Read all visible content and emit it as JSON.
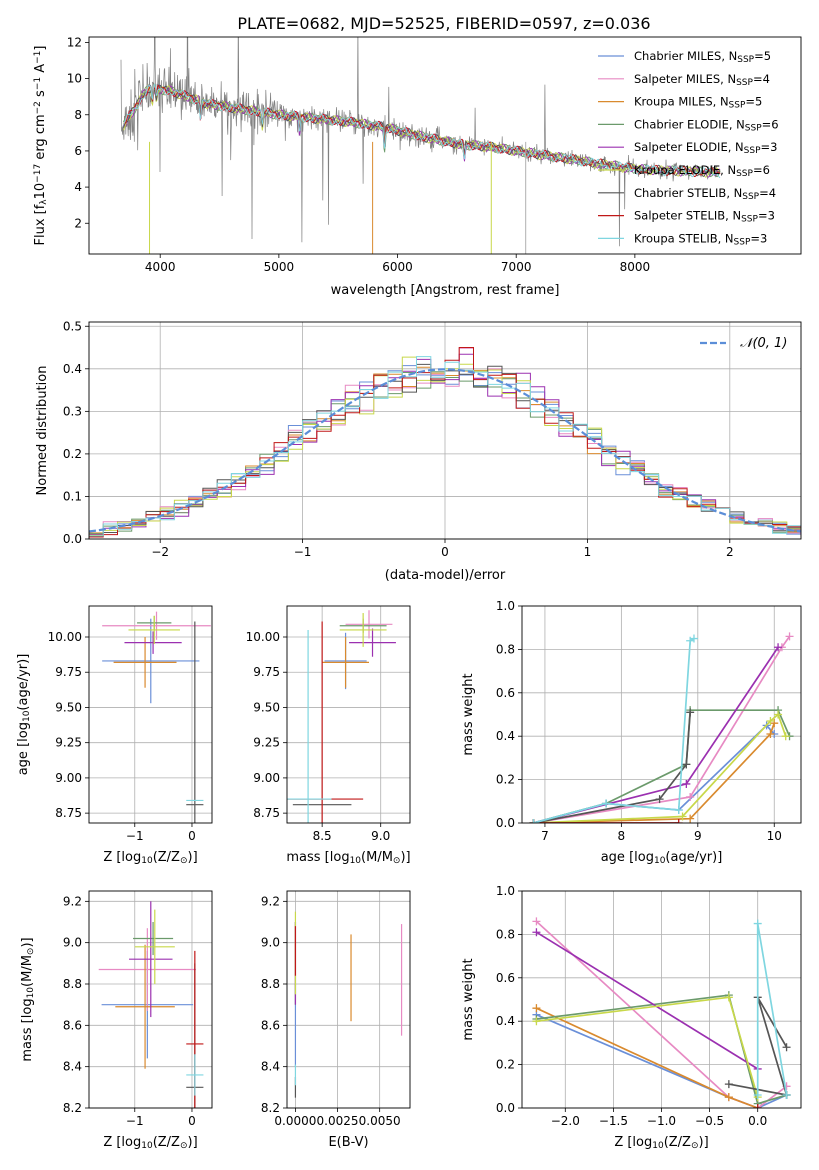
{
  "figure_title": "PLATE=0682, MJD=52525, FIBERID=0597, z=0.036",
  "colors": [
    "#6a8fd8",
    "#e78ac3",
    "#d98a2e",
    "#6b9a6b",
    "#9b30b0",
    "#c8d84a",
    "#555555",
    "#c01818",
    "#7fd6e0"
  ],
  "models": [
    {
      "label": "Chabrier MILES, N",
      "sub": "SSP",
      "n": "=5"
    },
    {
      "label": "Salpeter MILES, N",
      "sub": "SSP",
      "n": "=4"
    },
    {
      "label": "Kroupa MILES, N",
      "sub": "SSP",
      "n": "=5"
    },
    {
      "label": "Chabrier ELODIE, N",
      "sub": "SSP",
      "n": "=6"
    },
    {
      "label": "Salpeter ELODIE, N",
      "sub": "SSP",
      "n": "=3"
    },
    {
      "label": "Kroupa ELODIE, N",
      "sub": "SSP",
      "n": "=6"
    },
    {
      "label": "Chabrier STELIB, N",
      "sub": "SSP",
      "n": "=4"
    },
    {
      "label": "Salpeter STELIB, N",
      "sub": "SSP",
      "n": "=3"
    },
    {
      "label": "Kroupa STELIB, N",
      "sub": "SSP",
      "n": "=3"
    }
  ],
  "chart_data": [
    {
      "id": "spectrum",
      "type": "line",
      "xlabel": "wavelength [Angstrom, rest frame]",
      "ylabel_main": "Flux [f",
      "ylabel_sub": "λ",
      "ylabel_rest": "10",
      "ylabel_sup": "−17",
      "ylabel_unit": " erg cm",
      "ylabel_sup2": "−2",
      "ylabel_unit2": " s",
      "ylabel_sup3": "−1",
      "ylabel_unit3": " A",
      "ylabel_sup4": "−1",
      "ylabel_end": "]",
      "xlim": [
        3400,
        9400
      ],
      "ylim": [
        0.3,
        12.3
      ],
      "xticks": [
        "4000",
        "5000",
        "6000",
        "7000",
        "8000"
      ],
      "xtick_values": [
        4000,
        5000,
        6000,
        7000,
        8000
      ],
      "yticks": [
        "2",
        "4",
        "6",
        "8",
        "10",
        "12"
      ],
      "ytick_values": [
        2,
        4,
        6,
        8,
        10,
        12
      ],
      "continuum": {
        "x": [
          3680,
          3900,
          4100,
          4400,
          4700,
          5000,
          5300,
          5600,
          5900,
          6200,
          6500,
          6800,
          7100,
          7400,
          7700,
          8000,
          8300,
          8700
        ],
        "y": [
          7.3,
          9.5,
          9.3,
          8.6,
          8.3,
          8.0,
          7.8,
          7.6,
          7.3,
          6.8,
          6.4,
          6.2,
          5.9,
          5.6,
          5.3,
          5.0,
          4.9,
          4.8
        ]
      },
      "grid": false
    },
    {
      "id": "residuals",
      "type": "step",
      "xlabel": "(data-model)/error",
      "ylabel": "Normed distribution",
      "xlim": [
        -2.5,
        2.5
      ],
      "ylim": [
        0,
        0.51
      ],
      "xticks": [
        "−2",
        "−1",
        "0",
        "1",
        "2"
      ],
      "xtick_values": [
        -2,
        -1,
        0,
        1,
        2
      ],
      "yticks": [
        "0.0",
        "0.1",
        "0.2",
        "0.3",
        "0.4",
        "0.5"
      ],
      "ytick_values": [
        0,
        0.1,
        0.2,
        0.3,
        0.4,
        0.5
      ],
      "bin_width": 0.1,
      "legend_label": "𝒩(0, 1)",
      "legend_position": "top-right",
      "grid": true
    },
    {
      "id": "age_vs_Z",
      "type": "errorbar",
      "xlabel_main": "Z [log",
      "xlabel_sub": "10",
      "xlabel_rest": "(Z/Z",
      "xlabel_sub2": "⊙",
      "xlabel_end": ")]",
      "ylabel_main": "age  [log",
      "ylabel_sub": "10",
      "ylabel_rest": "(age/yr)]",
      "xlim": [
        -1.8,
        0.35
      ],
      "ylim": [
        8.68,
        10.22
      ],
      "xticks": [
        "−1",
        "0"
      ],
      "xtick_values": [
        -1,
        0
      ],
      "yticks": [
        "8.75",
        "9.00",
        "9.25",
        "9.50",
        "9.75",
        "10.00"
      ],
      "ytick_values": [
        8.75,
        9.0,
        9.25,
        9.5,
        9.75,
        10.0
      ],
      "points": [
        {
          "x": -0.72,
          "y": 9.83,
          "xerr": 0.85,
          "yerr": 0.3
        },
        {
          "x": -0.62,
          "y": 10.08,
          "xerr": 0.95,
          "yerr": 0.1
        },
        {
          "x": -0.82,
          "y": 9.82,
          "xerr": 0.55,
          "yerr": 0.18
        },
        {
          "x": -0.66,
          "y": 10.1,
          "xerr": 0.3,
          "yerr": 0.05
        },
        {
          "x": -0.68,
          "y": 9.96,
          "xerr": 0.5,
          "yerr": 0.08
        },
        {
          "x": -0.66,
          "y": 10.05,
          "xerr": 0.45,
          "yerr": 0.1
        },
        {
          "x": 0.05,
          "y": 8.81,
          "xerr": 0.15,
          "yerr": 1.3
        },
        {
          "x": 0.0,
          "y": 9.82,
          "xerr": 0.0,
          "yerr": 0.0
        },
        {
          "x": 0.05,
          "y": 8.84,
          "xerr": 0.15,
          "yerr": 0.0
        }
      ],
      "grid": true
    },
    {
      "id": "age_vs_mass",
      "type": "errorbar",
      "xlabel_main": "mass [log",
      "xlabel_sub": "10",
      "xlabel_rest": "(M/M",
      "xlabel_sub2": "⊙",
      "xlabel_end": ")]",
      "xlim": [
        8.2,
        9.25
      ],
      "ylim": [
        8.68,
        10.22
      ],
      "xticks": [
        "8.5",
        "9.0"
      ],
      "xtick_values": [
        8.5,
        9.0
      ],
      "yticks": [
        "8.75",
        "9.00",
        "9.25",
        "9.50",
        "9.75",
        "10.00"
      ],
      "ytick_values": [
        8.75,
        9.0,
        9.25,
        9.5,
        9.75,
        10.0
      ],
      "points": [
        {
          "x": 8.7,
          "y": 9.83,
          "xerr": 0.18,
          "yerr": 0.2
        },
        {
          "x": 8.9,
          "y": 10.09,
          "xerr": 0.2,
          "yerr": 0.1
        },
        {
          "x": 8.7,
          "y": 9.82,
          "xerr": 0.2,
          "yerr": 0.18
        },
        {
          "x": 8.85,
          "y": 10.08,
          "xerr": 0.2,
          "yerr": 0.05
        },
        {
          "x": 8.93,
          "y": 9.96,
          "xerr": 0.2,
          "yerr": 0.1
        },
        {
          "x": 8.85,
          "y": 10.05,
          "xerr": 0.2,
          "yerr": 0.12
        },
        {
          "x": 8.5,
          "y": 8.81,
          "xerr": 0.25,
          "yerr": 0.0
        },
        {
          "x": 8.5,
          "y": 8.85,
          "xerr": 0.35,
          "yerr": 1.26
        },
        {
          "x": 8.38,
          "y": 8.85,
          "xerr": 0.2,
          "yerr": 1.2
        }
      ],
      "grid": true
    },
    {
      "id": "massweight_vs_age",
      "type": "line",
      "xlabel_main": "age  [log",
      "xlabel_sub": "10",
      "xlabel_rest": "(age/yr)]",
      "ylabel": "mass weight",
      "xlim": [
        6.7,
        10.35
      ],
      "ylim": [
        0,
        1
      ],
      "xticks": [
        "7",
        "8",
        "9",
        "10"
      ],
      "xtick_values": [
        7,
        8,
        9,
        10
      ],
      "yticks": [
        "0.0",
        "0.2",
        "0.4",
        "0.6",
        "0.8",
        "1.0"
      ],
      "ytick_values": [
        0,
        0.2,
        0.4,
        0.6,
        0.8,
        1.0
      ],
      "series": [
        {
          "x": [
            6.85,
            7.8,
            8.75,
            9.9,
            10.0
          ],
          "y": [
            0.0,
            0.09,
            0.06,
            0.45,
            0.41
          ]
        },
        {
          "x": [
            6.85,
            8.9,
            10.1,
            10.2
          ],
          "y": [
            0.0,
            0.12,
            0.81,
            0.86
          ]
        },
        {
          "x": [
            6.85,
            8.9,
            9.95,
            10.0
          ],
          "y": [
            0.0,
            0.02,
            0.41,
            0.46
          ]
        },
        {
          "x": [
            6.85,
            7.8,
            8.85,
            8.9,
            10.05,
            10.2
          ],
          "y": [
            0.0,
            0.09,
            0.27,
            0.52,
            0.52,
            0.4
          ]
        },
        {
          "x": [
            6.85,
            8.85,
            10.05
          ],
          "y": [
            0.0,
            0.18,
            0.81
          ]
        },
        {
          "x": [
            6.85,
            8.8,
            9.95,
            10.05,
            10.15
          ],
          "y": [
            0.0,
            0.03,
            0.47,
            0.5,
            0.4
          ]
        },
        {
          "x": [
            6.85,
            8.5,
            8.85,
            8.9
          ],
          "y": [
            0.0,
            0.11,
            0.27,
            0.51
          ]
        },
        {
          "x": [
            6.85,
            8.75
          ],
          "y": [
            0.0,
            0.0
          ]
        },
        {
          "x": [
            6.85,
            7.8,
            8.75,
            8.9,
            8.95
          ],
          "y": [
            0.0,
            0.09,
            0.06,
            0.84,
            0.85
          ]
        }
      ],
      "grid": true
    },
    {
      "id": "mass_vs_Z",
      "type": "errorbar",
      "xlabel_main": "Z [log",
      "xlabel_sub": "10",
      "xlabel_rest": "(Z/Z",
      "xlabel_sub2": "⊙",
      "xlabel_end": ")]",
      "ylabel_main": "mass [log",
      "ylabel_sub": "10",
      "ylabel_rest": "(M/M",
      "ylabel_sub2": "⊙",
      "ylabel_end": ")]",
      "xlim": [
        -1.8,
        0.35
      ],
      "ylim": [
        8.2,
        9.25
      ],
      "xticks": [
        "−1",
        "0"
      ],
      "xtick_values": [
        -1,
        0
      ],
      "yticks": [
        "8.2",
        "8.4",
        "8.6",
        "8.8",
        "9.0",
        "9.2"
      ],
      "ytick_values": [
        8.2,
        8.4,
        8.6,
        8.8,
        9.0,
        9.2
      ],
      "points": [
        {
          "x": -0.78,
          "y": 8.7,
          "xerr": 0.8,
          "yerr": 0.26
        },
        {
          "x": -0.78,
          "y": 8.87,
          "xerr": 0.85,
          "yerr": 0.2
        },
        {
          "x": -0.82,
          "y": 8.69,
          "xerr": 0.52,
          "yerr": 0.3
        },
        {
          "x": -0.68,
          "y": 9.02,
          "xerr": 0.35,
          "yerr": 0.08
        },
        {
          "x": -0.72,
          "y": 8.92,
          "xerr": 0.38,
          "yerr": 0.28
        },
        {
          "x": -0.65,
          "y": 8.98,
          "xerr": 0.35,
          "yerr": 0.18
        },
        {
          "x": 0.05,
          "y": 8.3,
          "xerr": 0.15,
          "yerr": 0.6
        },
        {
          "x": 0.05,
          "y": 8.51,
          "xerr": 0.15,
          "yerr": 0.45
        },
        {
          "x": 0.05,
          "y": 8.36,
          "xerr": 0.15,
          "yerr": 0.1
        }
      ],
      "grid": true
    },
    {
      "id": "mass_vs_EBV",
      "type": "errorbar",
      "xlabel": "E(B-V)",
      "xlim": [
        -0.0005,
        0.0068
      ],
      "ylim": [
        8.2,
        9.25
      ],
      "xticks": [
        "0.0000",
        "0.0025",
        "0.0050"
      ],
      "xtick_values": [
        0,
        0.0025,
        0.005
      ],
      "yticks": [
        "8.2",
        "8.4",
        "8.6",
        "8.8",
        "9.0",
        "9.2"
      ],
      "ytick_values": [
        8.2,
        8.4,
        8.6,
        8.8,
        9.0,
        9.2
      ],
      "points": [
        {
          "x": 0.0,
          "y": 8.6,
          "xerr": 0,
          "yerr": 0.2
        },
        {
          "x": 0.0063,
          "y": 8.82,
          "xerr": 0,
          "yerr": 0.27
        },
        {
          "x": 0.0033,
          "y": 8.83,
          "xerr": 0,
          "yerr": 0.21
        },
        {
          "x": 0.0,
          "y": 8.9,
          "xerr": 0,
          "yerr": 0.2
        },
        {
          "x": 0.0,
          "y": 8.9,
          "xerr": 0,
          "yerr": 0.2
        },
        {
          "x": 0.0,
          "y": 8.95,
          "xerr": 0,
          "yerr": 0.2
        },
        {
          "x": 0.0,
          "y": 8.3,
          "xerr": 0,
          "yerr": 0.05
        },
        {
          "x": 0.0,
          "y": 8.96,
          "xerr": 0,
          "yerr": 0.12
        },
        {
          "x": 0.0,
          "y": 8.36,
          "xerr": 0,
          "yerr": 0.05
        }
      ],
      "grid": true
    },
    {
      "id": "massweight_vs_Z",
      "type": "line",
      "xlabel_main": "Z [log",
      "xlabel_sub": "10",
      "xlabel_rest": "(Z/Z",
      "xlabel_sub2": "⊙",
      "xlabel_end": ")]",
      "ylabel": "mass weight",
      "xlim": [
        -2.45,
        0.45
      ],
      "ylim": [
        0,
        1
      ],
      "xticks": [
        "−2.0",
        "−1.5",
        "−1.0",
        "−0.5",
        "0.0"
      ],
      "xtick_values": [
        -2,
        -1.5,
        -1,
        -0.5,
        0
      ],
      "yticks": [
        "0.0",
        "0.2",
        "0.4",
        "0.6",
        "0.8",
        "1.0"
      ],
      "ytick_values": [
        0,
        0.2,
        0.4,
        0.6,
        0.8,
        1.0
      ],
      "series": [
        {
          "x": [
            -2.3,
            -0.3,
            0.0,
            0.3
          ],
          "y": [
            0.43,
            0.05,
            0.0,
            0.06
          ]
        },
        {
          "x": [
            -2.3,
            -0.3,
            0.0,
            0.3
          ],
          "y": [
            0.86,
            0.05,
            0.0,
            0.1
          ]
        },
        {
          "x": [
            -2.3,
            -0.3,
            0.0
          ],
          "y": [
            0.46,
            0.05,
            0.0
          ]
        },
        {
          "x": [
            -2.3,
            -0.3,
            0.0,
            0.3
          ],
          "y": [
            0.41,
            0.52,
            0.02,
            0.06
          ]
        },
        {
          "x": [
            -2.3,
            0.0
          ],
          "y": [
            0.81,
            0.18
          ]
        },
        {
          "x": [
            -2.3,
            -0.3,
            0.0
          ],
          "y": [
            0.4,
            0.51,
            0.05
          ]
        },
        {
          "x": [
            -0.3,
            0.3,
            0.0,
            0.3
          ],
          "y": [
            0.11,
            0.06,
            0.51,
            0.28
          ]
        },
        {
          "x": [
            0.0
          ],
          "y": [
            0.0
          ]
        },
        {
          "x": [
            0.0,
            0.0,
            0.3
          ],
          "y": [
            0.06,
            0.85,
            0.06
          ]
        }
      ],
      "grid": true
    }
  ]
}
